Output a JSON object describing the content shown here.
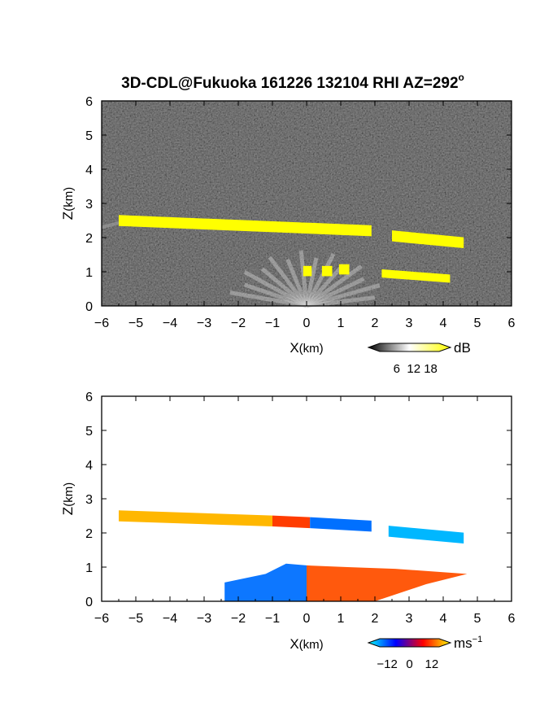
{
  "figure": {
    "title": "3D-CDL@Fukuoka 161226 132104 RHI AZ=292",
    "title_superscript": "o"
  },
  "chart_data": [
    {
      "type": "heatmap",
      "name": "reflectivity-rhi",
      "xlabel_main": "X",
      "xlabel_unit": "(km)",
      "ylabel_main": "Z",
      "ylabel_unit": "(km)",
      "xlim": [
        -6,
        6
      ],
      "ylim": [
        0,
        6
      ],
      "xticks": [
        "-6",
        "-5",
        "-4",
        "-3",
        "-2",
        "-1",
        "0",
        "1",
        "2",
        "3",
        "4",
        "5",
        "6"
      ],
      "yticks": [
        "0",
        "1",
        "2",
        "3",
        "4",
        "5",
        "6"
      ],
      "background_color": "#1b1b1b",
      "colorbar": {
        "unit": "dB",
        "ticks": [
          "6",
          "12",
          "18"
        ],
        "tick_values": [
          6,
          12,
          18
        ],
        "range": [
          0,
          21
        ],
        "colors": [
          "#000000",
          "#ffffff",
          "#ffff00"
        ]
      },
      "features": [
        {
          "label": "upper-cloud-layer",
          "x": [
            -5.5,
            1.9
          ],
          "z": [
            2.5,
            2.2
          ],
          "color": "#ffff00"
        },
        {
          "label": "upper-cloud-layer-east",
          "x": [
            2.5,
            4.6
          ],
          "z": [
            2.05,
            1.85
          ],
          "color": "#ffff00"
        },
        {
          "label": "lower-echoes",
          "x": [
            2.2,
            4.2
          ],
          "z": [
            0.95,
            0.8
          ],
          "color": "#ffff00"
        },
        {
          "label": "near-field-clutter",
          "x": [
            -0.2,
            1.3
          ],
          "z": [
            0.7,
            1.2
          ],
          "color": "#ffff00"
        }
      ]
    },
    {
      "type": "heatmap",
      "name": "doppler-velocity-rhi",
      "xlabel_main": "X",
      "xlabel_unit": "(km)",
      "ylabel_main": "Z",
      "ylabel_unit": "(km)",
      "xlim": [
        -6,
        6
      ],
      "ylim": [
        0,
        6
      ],
      "xticks": [
        "-6",
        "-5",
        "-4",
        "-3",
        "-2",
        "-1",
        "0",
        "1",
        "2",
        "3",
        "4",
        "5",
        "6"
      ],
      "yticks": [
        "0",
        "1",
        "2",
        "3",
        "4",
        "5",
        "6"
      ],
      "background_color": "#ffffff",
      "colorbar": {
        "unit_main": "ms",
        "unit_sup": "−1",
        "ticks": [
          "−12",
          "0",
          "12"
        ],
        "tick_values": [
          -12,
          0,
          12
        ],
        "range": [
          -16,
          16
        ],
        "colors": [
          "#00ffff",
          "#0000ff",
          "#ff0000",
          "#ffff00"
        ]
      },
      "features": [
        {
          "label": "upper-layer-west",
          "x": [
            -5.5,
            -1.0
          ],
          "z": [
            2.5,
            2.35
          ],
          "velocity": 12
        },
        {
          "label": "upper-layer-mid",
          "x": [
            -1.0,
            0.1
          ],
          "z": [
            2.35,
            2.3
          ],
          "velocity": 3
        },
        {
          "label": "upper-layer-east",
          "x": [
            0.1,
            1.9
          ],
          "z": [
            2.3,
            2.2
          ],
          "velocity": -8
        },
        {
          "label": "upper-layer-far",
          "x": [
            2.4,
            4.6
          ],
          "z": [
            2.05,
            1.85
          ],
          "velocity": -12
        },
        {
          "label": "boundary-layer-west",
          "x": [
            -2.4,
            0.0
          ],
          "z": [
            0.0,
            1.1
          ],
          "velocity": -8
        },
        {
          "label": "boundary-layer-east",
          "x": [
            0.0,
            4.7
          ],
          "z": [
            0.0,
            1.0
          ],
          "velocity": 5
        }
      ]
    }
  ]
}
